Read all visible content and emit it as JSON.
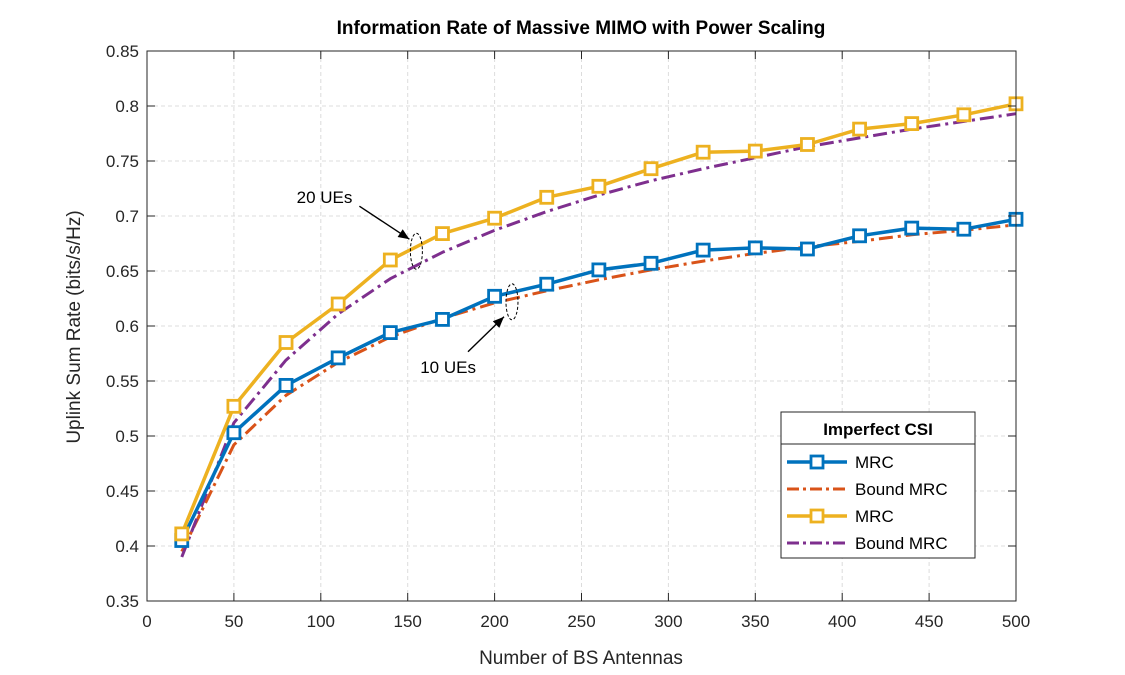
{
  "chart_data": {
    "type": "line",
    "title": "Information Rate of Massive MIMO with Power Scaling",
    "xlabel": "Number of BS Antennas",
    "ylabel": "Uplink Sum Rate (bits/s/Hz)",
    "xlim": [
      0,
      500
    ],
    "ylim": [
      0.35,
      0.85
    ],
    "xticks": [
      "0",
      "50",
      "100",
      "150",
      "200",
      "250",
      "300",
      "350",
      "400",
      "450",
      "500"
    ],
    "yticks": [
      "0.35",
      "0.4",
      "0.45",
      "0.5",
      "0.55",
      "0.6",
      "0.65",
      "0.7",
      "0.75",
      "0.8",
      "0.85"
    ],
    "grid": true,
    "legend": {
      "title": "Imperfect CSI",
      "placement": "bottom-right",
      "entries": [
        "MRC",
        "Bound MRC",
        "MRC",
        "Bound MRC"
      ]
    },
    "series": [
      {
        "name": "MRC",
        "color": "#0072BD",
        "style": "solid-square",
        "x": [
          20,
          50,
          80,
          110,
          140,
          170,
          200,
          230,
          260,
          290,
          320,
          350,
          380,
          410,
          440,
          470,
          500
        ],
        "y": [
          0.405,
          0.503,
          0.546,
          0.571,
          0.594,
          0.606,
          0.627,
          0.638,
          0.651,
          0.657,
          0.669,
          0.671,
          0.67,
          0.682,
          0.689,
          0.688,
          0.697
        ]
      },
      {
        "name": "Bound MRC",
        "color": "#D95319",
        "style": "dashdot",
        "x": [
          20,
          50,
          80,
          110,
          140,
          170,
          200,
          230,
          260,
          290,
          320,
          350,
          380,
          410,
          440,
          470,
          500
        ],
        "y": [
          0.395,
          0.492,
          0.537,
          0.567,
          0.59,
          0.607,
          0.621,
          0.632,
          0.642,
          0.651,
          0.659,
          0.666,
          0.672,
          0.677,
          0.683,
          0.687,
          0.692
        ]
      },
      {
        "name": "MRC",
        "color": "#EDB120",
        "style": "solid-square",
        "x": [
          20,
          50,
          80,
          110,
          140,
          170,
          200,
          230,
          260,
          290,
          320,
          350,
          380,
          410,
          440,
          470,
          500
        ],
        "y": [
          0.411,
          0.527,
          0.585,
          0.62,
          0.66,
          0.684,
          0.698,
          0.717,
          0.727,
          0.743,
          0.758,
          0.759,
          0.765,
          0.779,
          0.784,
          0.792,
          0.802
        ]
      },
      {
        "name": "Bound MRC",
        "color": "#7E2F8E",
        "style": "dashdot",
        "x": [
          20,
          50,
          80,
          110,
          140,
          170,
          200,
          230,
          260,
          290,
          320,
          350,
          380,
          410,
          440,
          470,
          500
        ],
        "y": [
          0.39,
          0.512,
          0.569,
          0.611,
          0.643,
          0.667,
          0.687,
          0.704,
          0.719,
          0.732,
          0.743,
          0.753,
          0.763,
          0.771,
          0.779,
          0.786,
          0.793
        ]
      }
    ],
    "annotations": [
      {
        "text": "20 UEs",
        "points_to": {
          "x": 155,
          "y": 0.668
        }
      },
      {
        "text": "10 UEs",
        "points_to": {
          "x": 210,
          "y": 0.622
        }
      }
    ]
  }
}
